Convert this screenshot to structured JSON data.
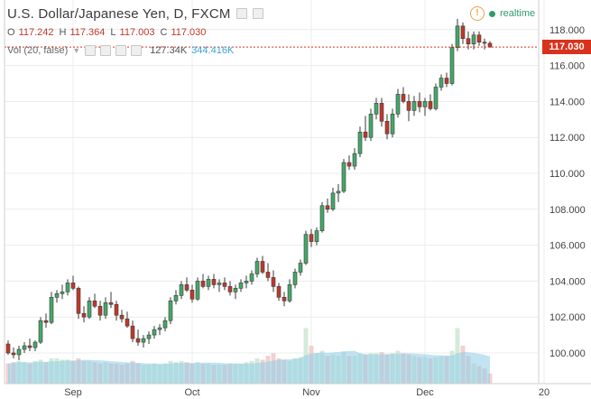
{
  "header": {
    "symbol_title": "U.S. Dollar/Japanese Yen, D, FXCM",
    "realtime_label": "realtime",
    "warning_glyph": "!"
  },
  "ohlc": {
    "o_label": "O",
    "o_value": "117.242",
    "h_label": "H",
    "h_value": "117.364",
    "l_label": "L",
    "l_value": "117.003",
    "c_label": "C",
    "c_value": "117.030"
  },
  "volume": {
    "label": "Vol (20, false)",
    "value": "127.34K",
    "ma_value": "344.416K"
  },
  "price_axis": {
    "last_price_label": "117.030"
  },
  "colors": {
    "up": "#45a86a",
    "down": "#c0392b",
    "vol_up": "#cfe9d5",
    "vol_down": "#f0cccc",
    "vol_ma": "#8fcde8",
    "last_price": "#d9321c",
    "grid": "#ececec"
  },
  "chart_data": {
    "type": "candlestick",
    "symbol": "U.S. Dollar/Japanese Yen",
    "interval": "D",
    "y_ticks": [
      "100.000",
      "102.000",
      "104.000",
      "106.000",
      "108.000",
      "110.000",
      "112.000",
      "114.000",
      "116.000",
      "118.000"
    ],
    "ylim": [
      99.0,
      119.0
    ],
    "x_labels": [
      {
        "label": "Sep",
        "bar": 12
      },
      {
        "label": "Oct",
        "bar": 34
      },
      {
        "label": "Nov",
        "bar": 56
      },
      {
        "label": "Dec",
        "bar": 77
      },
      {
        "label": "20",
        "bar": 99
      }
    ],
    "last_price": 117.03,
    "grid": true,
    "volume_max": 6,
    "candles": [
      [
        100.5,
        100.7,
        99.9,
        100.0,
        1.6
      ],
      [
        100.0,
        100.3,
        99.7,
        99.9,
        1.7
      ],
      [
        99.9,
        100.4,
        99.6,
        100.2,
        1.8
      ],
      [
        100.2,
        100.6,
        100.0,
        100.4,
        1.7
      ],
      [
        100.4,
        100.8,
        100.1,
        100.3,
        1.6
      ],
      [
        100.3,
        100.7,
        100.1,
        100.6,
        1.8
      ],
      [
        100.6,
        102.0,
        100.5,
        101.8,
        1.9
      ],
      [
        101.8,
        102.2,
        101.4,
        101.7,
        1.7
      ],
      [
        101.7,
        103.4,
        101.6,
        103.1,
        2.0
      ],
      [
        103.1,
        103.5,
        102.8,
        103.3,
        2.0
      ],
      [
        103.3,
        103.8,
        103.0,
        103.4,
        1.9
      ],
      [
        103.4,
        104.1,
        103.2,
        103.9,
        1.9
      ],
      [
        103.9,
        104.3,
        103.5,
        103.6,
        1.8
      ],
      [
        103.6,
        103.7,
        101.9,
        102.2,
        2.0
      ],
      [
        102.2,
        102.6,
        101.7,
        102.0,
        1.8
      ],
      [
        102.0,
        103.1,
        101.9,
        102.9,
        1.8
      ],
      [
        102.9,
        103.3,
        102.5,
        102.6,
        1.7
      ],
      [
        102.6,
        102.9,
        101.8,
        102.1,
        1.6
      ],
      [
        102.1,
        103.1,
        101.9,
        102.8,
        1.7
      ],
      [
        102.8,
        103.4,
        102.5,
        102.7,
        1.6
      ],
      [
        102.7,
        102.9,
        101.8,
        102.1,
        1.6
      ],
      [
        102.1,
        102.4,
        101.7,
        101.9,
        1.5
      ],
      [
        101.9,
        102.3,
        101.4,
        101.5,
        1.6
      ],
      [
        101.5,
        101.8,
        100.6,
        100.8,
        1.8
      ],
      [
        100.8,
        101.3,
        100.4,
        100.6,
        1.6
      ],
      [
        100.6,
        101.0,
        100.3,
        100.8,
        1.5
      ],
      [
        100.8,
        101.2,
        100.5,
        101.0,
        1.5
      ],
      [
        101.0,
        101.5,
        100.8,
        101.3,
        1.6
      ],
      [
        101.3,
        101.6,
        101.0,
        101.4,
        1.5
      ],
      [
        101.4,
        102.0,
        101.2,
        101.8,
        1.6
      ],
      [
        101.8,
        103.1,
        101.6,
        102.9,
        1.8
      ],
      [
        102.9,
        103.5,
        102.7,
        103.2,
        1.7
      ],
      [
        103.2,
        104.0,
        103.0,
        103.8,
        1.8
      ],
      [
        103.8,
        104.2,
        103.4,
        103.5,
        1.7
      ],
      [
        103.5,
        103.8,
        102.8,
        103.0,
        1.6
      ],
      [
        103.0,
        104.2,
        102.9,
        104.0,
        1.7
      ],
      [
        104.0,
        104.4,
        103.6,
        103.7,
        1.6
      ],
      [
        103.7,
        104.3,
        103.5,
        104.1,
        1.6
      ],
      [
        104.1,
        104.4,
        103.6,
        103.8,
        1.5
      ],
      [
        103.8,
        104.1,
        103.4,
        103.9,
        1.5
      ],
      [
        103.9,
        104.2,
        103.5,
        103.7,
        1.5
      ],
      [
        103.7,
        104.0,
        103.2,
        103.4,
        1.6
      ],
      [
        103.4,
        103.8,
        103.0,
        103.6,
        1.6
      ],
      [
        103.6,
        104.1,
        103.4,
        103.9,
        1.6
      ],
      [
        103.9,
        104.3,
        103.6,
        104.0,
        1.7
      ],
      [
        104.0,
        104.6,
        103.8,
        104.4,
        1.8
      ],
      [
        104.4,
        105.3,
        104.2,
        105.1,
        2.0
      ],
      [
        105.1,
        105.4,
        104.4,
        104.5,
        1.9
      ],
      [
        104.5,
        105.0,
        104.0,
        104.2,
        2.2
      ],
      [
        104.2,
        104.6,
        103.4,
        103.7,
        2.4
      ],
      [
        103.7,
        103.9,
        102.9,
        103.1,
        2.0
      ],
      [
        103.1,
        103.4,
        102.6,
        102.9,
        1.9
      ],
      [
        102.9,
        104.1,
        102.8,
        103.8,
        1.8
      ],
      [
        103.8,
        104.7,
        103.6,
        104.5,
        2.0
      ],
      [
        104.5,
        105.2,
        104.3,
        105.0,
        2.1
      ],
      [
        105.0,
        106.8,
        104.9,
        106.6,
        4.4
      ],
      [
        106.6,
        106.9,
        105.9,
        106.2,
        3.0
      ],
      [
        106.2,
        107.0,
        106.0,
        106.8,
        2.4
      ],
      [
        106.8,
        108.4,
        106.7,
        108.2,
        2.6
      ],
      [
        108.2,
        108.6,
        107.8,
        108.0,
        2.2
      ],
      [
        108.0,
        109.2,
        107.9,
        108.9,
        2.3
      ],
      [
        108.9,
        109.4,
        108.4,
        109.0,
        2.2
      ],
      [
        109.0,
        110.8,
        108.9,
        110.6,
        2.5
      ],
      [
        110.6,
        111.0,
        110.2,
        110.4,
        2.2
      ],
      [
        110.4,
        111.4,
        110.2,
        111.1,
        2.2
      ],
      [
        111.1,
        112.6,
        110.9,
        112.3,
        2.4
      ],
      [
        112.3,
        113.2,
        111.8,
        112.0,
        2.3
      ],
      [
        112.0,
        113.6,
        111.8,
        113.3,
        2.4
      ],
      [
        113.3,
        114.2,
        113.0,
        113.9,
        2.4
      ],
      [
        113.9,
        114.2,
        112.6,
        112.9,
        2.5
      ],
      [
        112.9,
        113.3,
        111.9,
        112.2,
        2.3
      ],
      [
        112.2,
        113.6,
        112.0,
        113.3,
        2.4
      ],
      [
        113.3,
        114.7,
        113.1,
        114.4,
        2.6
      ],
      [
        114.4,
        114.8,
        113.9,
        114.0,
        2.4
      ],
      [
        114.0,
        114.4,
        112.9,
        113.5,
        2.3
      ],
      [
        113.5,
        114.3,
        113.2,
        114.0,
        2.2
      ],
      [
        114.0,
        114.5,
        113.4,
        113.7,
        2.1
      ],
      [
        113.7,
        114.2,
        113.2,
        114.0,
        2.1
      ],
      [
        114.0,
        114.4,
        113.5,
        113.6,
        2.0
      ],
      [
        113.6,
        115.0,
        113.5,
        114.8,
        2.1
      ],
      [
        114.8,
        115.5,
        114.6,
        115.3,
        2.2
      ],
      [
        115.3,
        115.6,
        114.8,
        115.0,
        2.2
      ],
      [
        115.0,
        117.2,
        114.9,
        117.0,
        2.6
      ],
      [
        117.0,
        118.6,
        116.8,
        118.2,
        4.4
      ],
      [
        118.2,
        118.4,
        117.2,
        117.5,
        3.0
      ],
      [
        117.5,
        117.9,
        116.9,
        117.2,
        2.2
      ],
      [
        117.2,
        117.9,
        116.9,
        117.7,
        1.6
      ],
      [
        117.7,
        117.9,
        117.1,
        117.3,
        1.4
      ],
      [
        117.3,
        117.5,
        116.9,
        117.24,
        1.2
      ],
      [
        117.24,
        117.36,
        117.0,
        117.03,
        0.8
      ]
    ]
  }
}
